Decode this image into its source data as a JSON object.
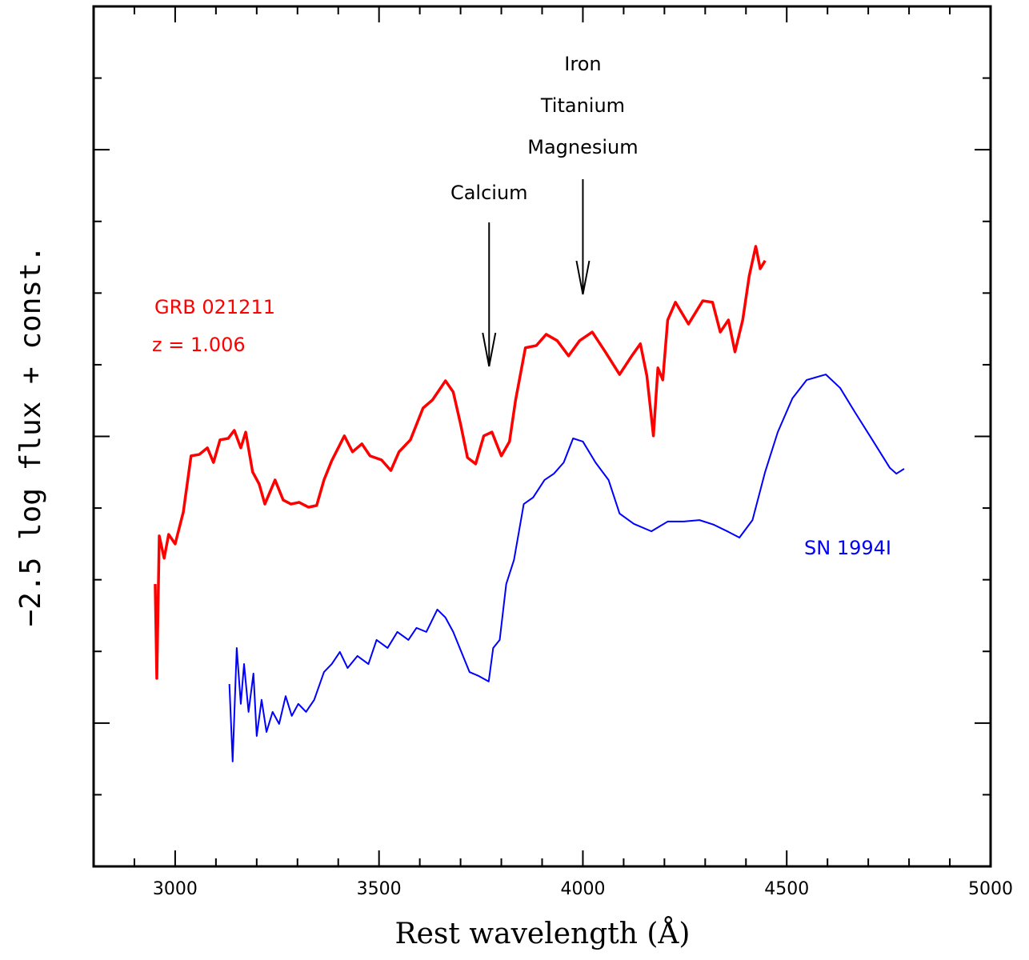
{
  "chart_data": {
    "type": "line",
    "xlabel": "Rest wavelength (Å)",
    "ylabel": "−2.5 log flux + const.",
    "xlim": [
      2800,
      5000
    ],
    "ylim": [
      0,
      3
    ],
    "xticks": [
      3000,
      3500,
      4000,
      4500,
      5000
    ],
    "xticks_minor": [
      2900,
      3100,
      3200,
      3300,
      3400,
      3600,
      3700,
      3800,
      3900,
      4100,
      4200,
      4300,
      4400,
      4600,
      4700,
      4800,
      4900
    ],
    "yticks": [
      0.25,
      0.5,
      0.75,
      1,
      1.25,
      1.5,
      1.75,
      2,
      2.25,
      2.5,
      2.75
    ],
    "series": [
      {
        "name": "GRB 021211",
        "color": "#ff0000",
        "x": [
          2951,
          2955,
          2961,
          2973,
          2984,
          3000,
          3020,
          3039,
          3059,
          3079,
          3094,
          3110,
          3130,
          3145,
          3161,
          3173,
          3190,
          3206,
          3220,
          3245,
          3265,
          3284,
          3304,
          3327,
          3347,
          3365,
          3384,
          3415,
          3435,
          3458,
          3478,
          3506,
          3529,
          3549,
          3577,
          3608,
          3631,
          3663,
          3682,
          3700,
          3717,
          3737,
          3757,
          3777,
          3800,
          3820,
          3835,
          3859,
          3886,
          3910,
          3937,
          3965,
          3992,
          4023,
          4055,
          4090,
          4120,
          4141,
          4157,
          4173,
          4184,
          4196,
          4208,
          4227,
          4259,
          4294,
          4318,
          4337,
          4357,
          4373,
          4392,
          4408,
          4424,
          4435,
          4447
        ],
        "values": [
          0.985,
          0.656,
          1.153,
          1.075,
          1.158,
          1.125,
          1.236,
          1.432,
          1.437,
          1.46,
          1.409,
          1.488,
          1.493,
          1.521,
          1.46,
          1.515,
          1.376,
          1.334,
          1.264,
          1.348,
          1.278,
          1.264,
          1.27,
          1.253,
          1.259,
          1.348,
          1.415,
          1.502,
          1.446,
          1.474,
          1.432,
          1.418,
          1.381,
          1.446,
          1.488,
          1.599,
          1.627,
          1.694,
          1.655,
          1.543,
          1.426,
          1.404,
          1.502,
          1.515,
          1.432,
          1.482,
          1.627,
          1.809,
          1.817,
          1.856,
          1.834,
          1.781,
          1.834,
          1.864,
          1.795,
          1.716,
          1.781,
          1.823,
          1.711,
          1.502,
          1.739,
          1.697,
          1.906,
          1.968,
          1.892,
          1.973,
          1.968,
          1.864,
          1.906,
          1.795,
          1.906,
          2.06,
          2.163,
          2.085,
          2.113
        ]
      },
      {
        "name": "SN 1994I",
        "color": "#0000ff",
        "x": [
          3133,
          3141,
          3151,
          3161,
          3169,
          3180,
          3192,
          3200,
          3212,
          3224,
          3239,
          3255,
          3271,
          3286,
          3302,
          3321,
          3341,
          3365,
          3384,
          3404,
          3423,
          3447,
          3474,
          3494,
          3521,
          3545,
          3572,
          3592,
          3616,
          3643,
          3663,
          3682,
          3702,
          3722,
          3745,
          3769,
          3780,
          3796,
          3812,
          3831,
          3855,
          3878,
          3906,
          3929,
          3953,
          3976,
          4000,
          4031,
          4063,
          4090,
          4125,
          4168,
          4208,
          4247,
          4286,
          4321,
          4357,
          4384,
          4416,
          4447,
          4478,
          4514,
          4549,
          4596,
          4631,
          4667,
          4710,
          4753,
          4769,
          4788
        ],
        "values": [
          0.636,
          0.366,
          0.762,
          0.567,
          0.706,
          0.539,
          0.673,
          0.455,
          0.581,
          0.469,
          0.539,
          0.497,
          0.594,
          0.525,
          0.567,
          0.539,
          0.581,
          0.678,
          0.706,
          0.748,
          0.692,
          0.734,
          0.706,
          0.79,
          0.762,
          0.818,
          0.79,
          0.832,
          0.818,
          0.896,
          0.868,
          0.818,
          0.748,
          0.678,
          0.664,
          0.645,
          0.762,
          0.79,
          0.985,
          1.069,
          1.264,
          1.287,
          1.348,
          1.37,
          1.409,
          1.493,
          1.482,
          1.409,
          1.348,
          1.231,
          1.195,
          1.169,
          1.203,
          1.203,
          1.208,
          1.192,
          1.167,
          1.147,
          1.208,
          1.376,
          1.515,
          1.633,
          1.697,
          1.716,
          1.669,
          1.585,
          1.488,
          1.39,
          1.37,
          1.387
        ]
      }
    ],
    "redshift_label": "z = 1.006",
    "annotations": [
      {
        "x": 3770,
        "texts": [
          "Calcium"
        ]
      },
      {
        "x": 4000,
        "texts": [
          "Iron",
          "Titanium",
          "Magnesium"
        ]
      }
    ]
  }
}
